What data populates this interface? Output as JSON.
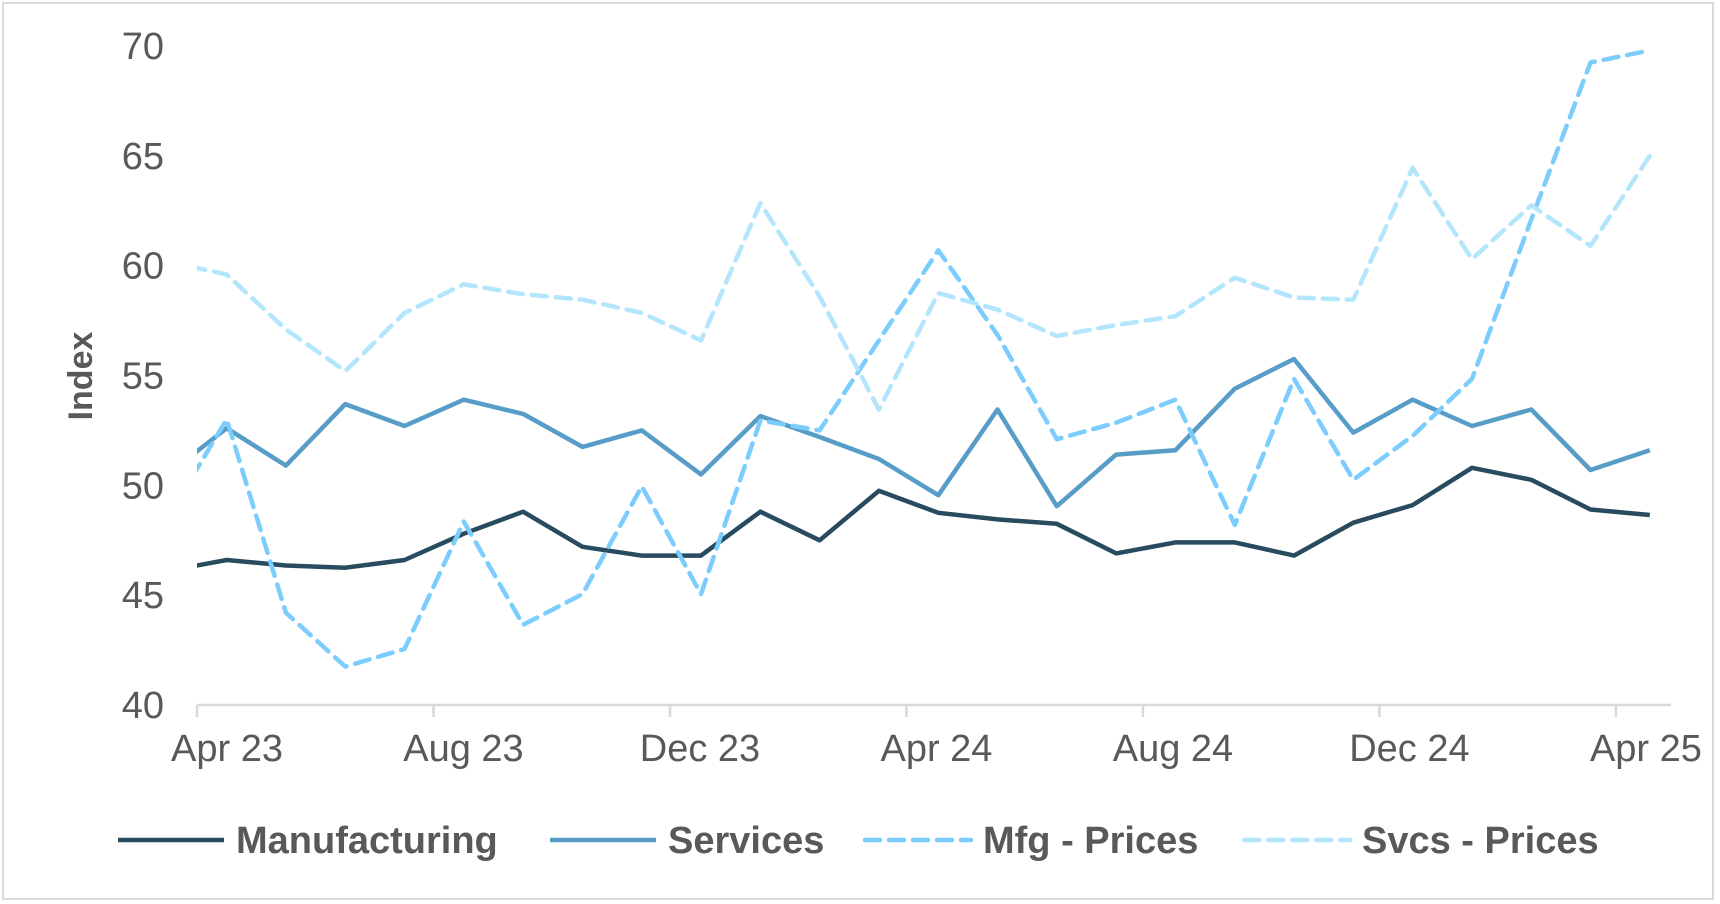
{
  "chart_data": {
    "type": "line",
    "title": "",
    "xlabel": "",
    "ylabel": "Index",
    "ylim": [
      40,
      70
    ],
    "yticks": [
      40,
      45,
      50,
      55,
      60,
      65,
      70
    ],
    "xtick_labels": [
      "Apr 23",
      "Aug 23",
      "Dec 23",
      "Apr 24",
      "Aug 24",
      "Dec 24",
      "Apr 25"
    ],
    "grid": false,
    "legend_position": "bottom",
    "categories": [
      "Mar 23",
      "Apr 23",
      "May 23",
      "Jun 23",
      "Jul 23",
      "Aug 23",
      "Sep 23",
      "Oct 23",
      "Nov 23",
      "Dec 23",
      "Jan 24",
      "Feb 24",
      "Mar 24",
      "Apr 24",
      "May 24",
      "Jun 24",
      "Jul 24",
      "Aug 24",
      "Sep 24",
      "Oct 24",
      "Nov 24",
      "Dec 24",
      "Jan 25",
      "Feb 25",
      "Mar 25",
      "Apr 25"
    ],
    "series": [
      {
        "name": "Manufacturing",
        "color": "#284b5f",
        "dashed": false,
        "values": [
          46.1,
          46.6,
          46.35,
          46.25,
          46.6,
          47.8,
          48.8,
          47.2,
          46.8,
          46.8,
          48.8,
          47.5,
          49.75,
          48.75,
          48.45,
          48.25,
          46.9,
          47.4,
          47.4,
          46.8,
          48.3,
          49.1,
          50.8,
          50.25,
          48.9,
          48.65
        ]
      },
      {
        "name": "Services",
        "color": "#579dc8",
        "dashed": false,
        "values": [
          50.5,
          52.6,
          50.9,
          53.7,
          52.7,
          53.9,
          53.25,
          51.75,
          52.5,
          50.5,
          53.15,
          52.2,
          51.2,
          49.55,
          53.45,
          49.05,
          51.4,
          51.6,
          54.4,
          55.75,
          52.4,
          53.9,
          52.7,
          53.45,
          50.7,
          51.6
        ]
      },
      {
        "name": "Mfg - Prices",
        "color": "#7ccdfd",
        "dashed": true,
        "values": [
          48.5,
          53.0,
          44.2,
          41.75,
          42.55,
          48.35,
          43.65,
          45.05,
          49.95,
          45.05,
          52.95,
          52.5,
          56.6,
          60.7,
          56.85,
          52.1,
          52.85,
          53.9,
          48.2,
          54.85,
          50.25,
          52.25,
          54.85,
          62.1,
          69.25,
          69.8
        ]
      },
      {
        "name": "Svcs - Prices",
        "color": "#b3e6fd",
        "dashed": true,
        "values": [
          60.2,
          59.6,
          57.1,
          55.2,
          57.85,
          59.15,
          58.7,
          58.45,
          57.85,
          56.6,
          62.85,
          58.6,
          53.45,
          58.75,
          58.0,
          56.8,
          57.3,
          57.7,
          59.45,
          58.55,
          58.45,
          64.45,
          60.3,
          62.75,
          60.9,
          65.0
        ]
      }
    ]
  }
}
